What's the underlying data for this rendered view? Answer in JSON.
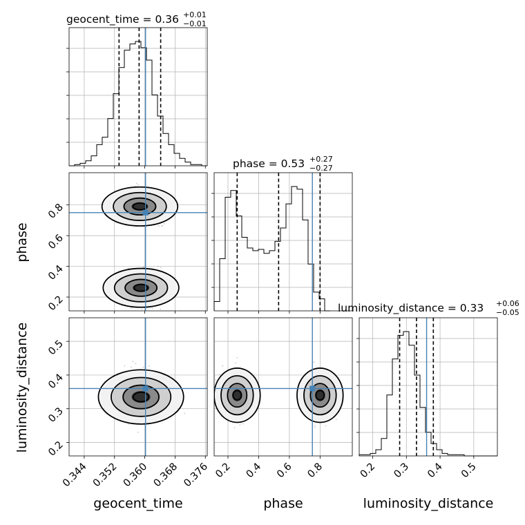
{
  "params": [
    "geocent_time",
    "phase",
    "luminosity_distance"
  ],
  "titles": [
    {
      "name": "geocent_time",
      "value": "0.36",
      "plus": "+0.01",
      "minus": "−0.01"
    },
    {
      "name": "phase",
      "value": "0.53",
      "plus": "+0.27",
      "minus": "−0.27"
    },
    {
      "name": "luminosity_distance",
      "value": "0.33",
      "plus": "+0.06",
      "minus": "−0.05"
    }
  ],
  "colors": {
    "truth": "#4682b4",
    "hist": "#000000",
    "grid": "#b0b0b0"
  },
  "chart_data": {
    "type": "corner",
    "truths": [
      0.3602,
      0.75,
      0.36
    ],
    "ranges": [
      [
        0.34,
        0.3765
      ],
      [
        0.11,
        1.01
      ],
      [
        0.16,
        0.57
      ]
    ],
    "ticks": [
      {
        "values": [
          0.344,
          0.352,
          0.36,
          0.368,
          0.376
        ],
        "labels": [
          "0.344",
          "0.352",
          "0.360",
          "0.368",
          "0.376"
        ]
      },
      {
        "values": [
          0.2,
          0.4,
          0.6,
          0.8
        ],
        "labels": [
          "0.2",
          "0.4",
          "0.6",
          "0.8"
        ]
      },
      {
        "values": [
          0.2,
          0.3,
          0.4,
          0.5
        ],
        "labels": [
          "0.2",
          "0.3",
          "0.4",
          "0.5"
        ]
      }
    ],
    "quantiles": [
      [
        0.3532,
        0.3585,
        0.3642
      ],
      [
        0.26,
        0.53,
        0.8
      ],
      [
        0.28,
        0.33,
        0.38
      ]
    ],
    "histograms": [
      {
        "edges_start": 0.34,
        "edges_step": 0.00146,
        "counts": [
          0,
          1,
          2,
          4,
          8,
          17,
          23,
          38,
          58,
          79,
          93,
          98,
          100,
          95,
          85,
          57,
          40,
          26,
          17,
          10,
          6,
          3,
          1,
          1,
          0
        ]
      },
      {
        "edges_start": 0.11,
        "edges_step": 0.036,
        "counts": [
          7,
          39,
          85,
          90,
          71,
          55,
          47,
          45,
          46,
          43,
          45,
          52,
          62,
          80,
          93,
          91,
          68,
          35,
          14,
          9,
          0
        ]
      },
      {
        "edges_start": 0.16,
        "edges_step": 0.0164,
        "counts": [
          1,
          1,
          2,
          5,
          14,
          49,
          78,
          97,
          100,
          89,
          65,
          39,
          19,
          10,
          5,
          2,
          1,
          1,
          1,
          0,
          0,
          0,
          0,
          0,
          0
        ]
      }
    ]
  }
}
